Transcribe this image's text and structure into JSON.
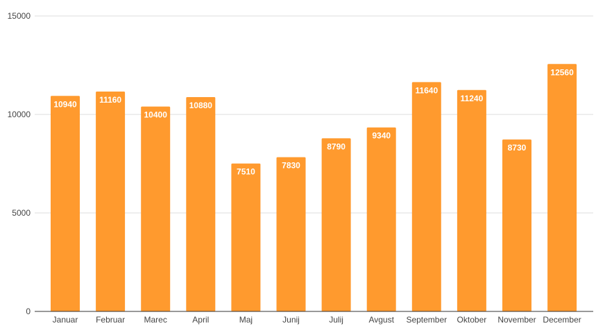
{
  "chart_data": {
    "type": "bar",
    "title": "",
    "xlabel": "",
    "ylabel": "",
    "categories": [
      "Januar",
      "Februar",
      "Marec",
      "April",
      "Maj",
      "Junij",
      "Julij",
      "Avgust",
      "September",
      "Oktober",
      "November",
      "December"
    ],
    "values": [
      10940,
      11160,
      10400,
      10880,
      7510,
      7830,
      8790,
      9340,
      11640,
      11240,
      8730,
      12560
    ],
    "ylim": [
      0,
      15000
    ],
    "yticks": [
      0,
      5000,
      10000,
      15000
    ],
    "grid": true,
    "legend": "none",
    "data_labels": true,
    "colors": {
      "bar": "#FF9A2E",
      "gridline": "#DDDDDD",
      "baseline": "#333333",
      "tick_text": "#444444",
      "data_label_text": "#FFFFFF"
    }
  }
}
